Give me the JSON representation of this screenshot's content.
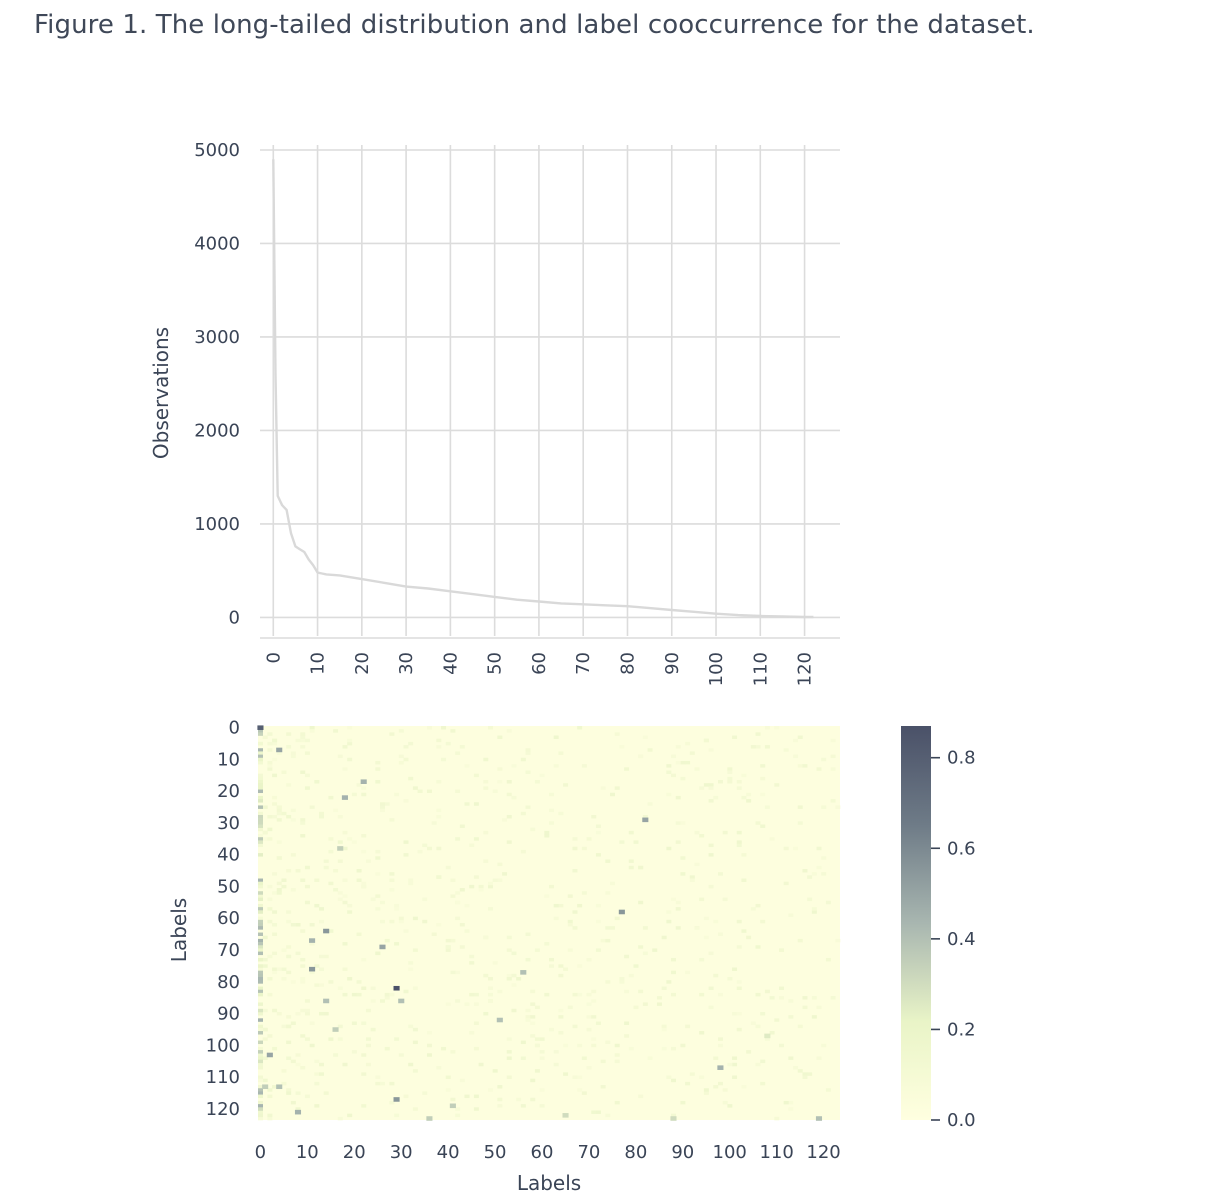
{
  "caption": "Figure 1. The long-tailed distribution and label cooccurrence for the dataset.",
  "chart_data": [
    {
      "type": "line",
      "title": "",
      "xlabel": "",
      "ylabel": "Observations",
      "xlim": [
        -3,
        128
      ],
      "ylim": [
        -220,
        5000
      ],
      "xticks": [
        0,
        10,
        20,
        30,
        40,
        50,
        60,
        70,
        80,
        90,
        100,
        110,
        120
      ],
      "yticks": [
        0,
        1000,
        2000,
        3000,
        4000,
        5000
      ],
      "grid": true,
      "line_color": "#d9d9d9",
      "x": [
        0,
        0.5,
        1,
        2,
        3,
        4,
        5,
        6,
        7,
        8,
        9,
        10,
        11,
        12,
        15,
        20,
        25,
        30,
        35,
        40,
        45,
        50,
        55,
        60,
        65,
        70,
        75,
        80,
        85,
        90,
        95,
        100,
        105,
        110,
        115,
        120,
        122
      ],
      "y": [
        4900,
        2600,
        1300,
        1200,
        1150,
        900,
        760,
        730,
        700,
        620,
        560,
        480,
        470,
        460,
        450,
        410,
        370,
        330,
        310,
        280,
        250,
        220,
        190,
        170,
        150,
        140,
        130,
        120,
        100,
        80,
        60,
        40,
        25,
        15,
        10,
        5,
        5
      ]
    },
    {
      "type": "heatmap",
      "title": "",
      "xlabel": "Labels",
      "ylabel": "Labels",
      "size": 124,
      "xticks": [
        0,
        10,
        20,
        30,
        40,
        50,
        60,
        70,
        80,
        90,
        100,
        110,
        120
      ],
      "yticks": [
        0,
        10,
        20,
        30,
        40,
        50,
        60,
        70,
        80,
        90,
        100,
        110,
        120
      ],
      "colorbar": {
        "min": 0.0,
        "max": 0.87,
        "ticks": [
          0.0,
          0.2,
          0.4,
          0.6,
          0.8
        ]
      },
      "colormap": [
        "#ffffe0",
        "#e9f4c7",
        "#a8b6b0",
        "#6e7b87",
        "#4a5168"
      ],
      "background_value": 0.02,
      "notable_cells": [
        {
          "col": 0,
          "row": 0,
          "value": 0.8
        },
        {
          "col": 4,
          "row": 7,
          "value": 0.5
        },
        {
          "col": 22,
          "row": 17,
          "value": 0.45
        },
        {
          "col": 18,
          "row": 22,
          "value": 0.45
        },
        {
          "col": 82,
          "row": 29,
          "value": 0.5
        },
        {
          "col": 17,
          "row": 38,
          "value": 0.35
        },
        {
          "col": 77,
          "row": 58,
          "value": 0.55
        },
        {
          "col": 14,
          "row": 64,
          "value": 0.55
        },
        {
          "col": 11,
          "row": 67,
          "value": 0.45
        },
        {
          "col": 26,
          "row": 69,
          "value": 0.5
        },
        {
          "col": 11,
          "row": 76,
          "value": 0.55
        },
        {
          "col": 56,
          "row": 77,
          "value": 0.4
        },
        {
          "col": 29,
          "row": 82,
          "value": 0.87
        },
        {
          "col": 30,
          "row": 86,
          "value": 0.4
        },
        {
          "col": 14,
          "row": 86,
          "value": 0.4
        },
        {
          "col": 51,
          "row": 92,
          "value": 0.4
        },
        {
          "col": 16,
          "row": 95,
          "value": 0.35
        },
        {
          "col": 2,
          "row": 103,
          "value": 0.5
        },
        {
          "col": 98,
          "row": 107,
          "value": 0.45
        },
        {
          "col": 4,
          "row": 113,
          "value": 0.4
        },
        {
          "col": 1,
          "row": 113,
          "value": 0.35
        },
        {
          "col": 29,
          "row": 117,
          "value": 0.55
        },
        {
          "col": 41,
          "row": 119,
          "value": 0.35
        },
        {
          "col": 8,
          "row": 121,
          "value": 0.45
        },
        {
          "col": 36,
          "row": 123,
          "value": 0.35
        },
        {
          "col": 88,
          "row": 123,
          "value": 0.3
        },
        {
          "col": 119,
          "row": 123,
          "value": 0.4
        },
        {
          "col": 65,
          "row": 122,
          "value": 0.3
        },
        {
          "col": 108,
          "row": 97,
          "value": 0.25
        }
      ]
    }
  ]
}
